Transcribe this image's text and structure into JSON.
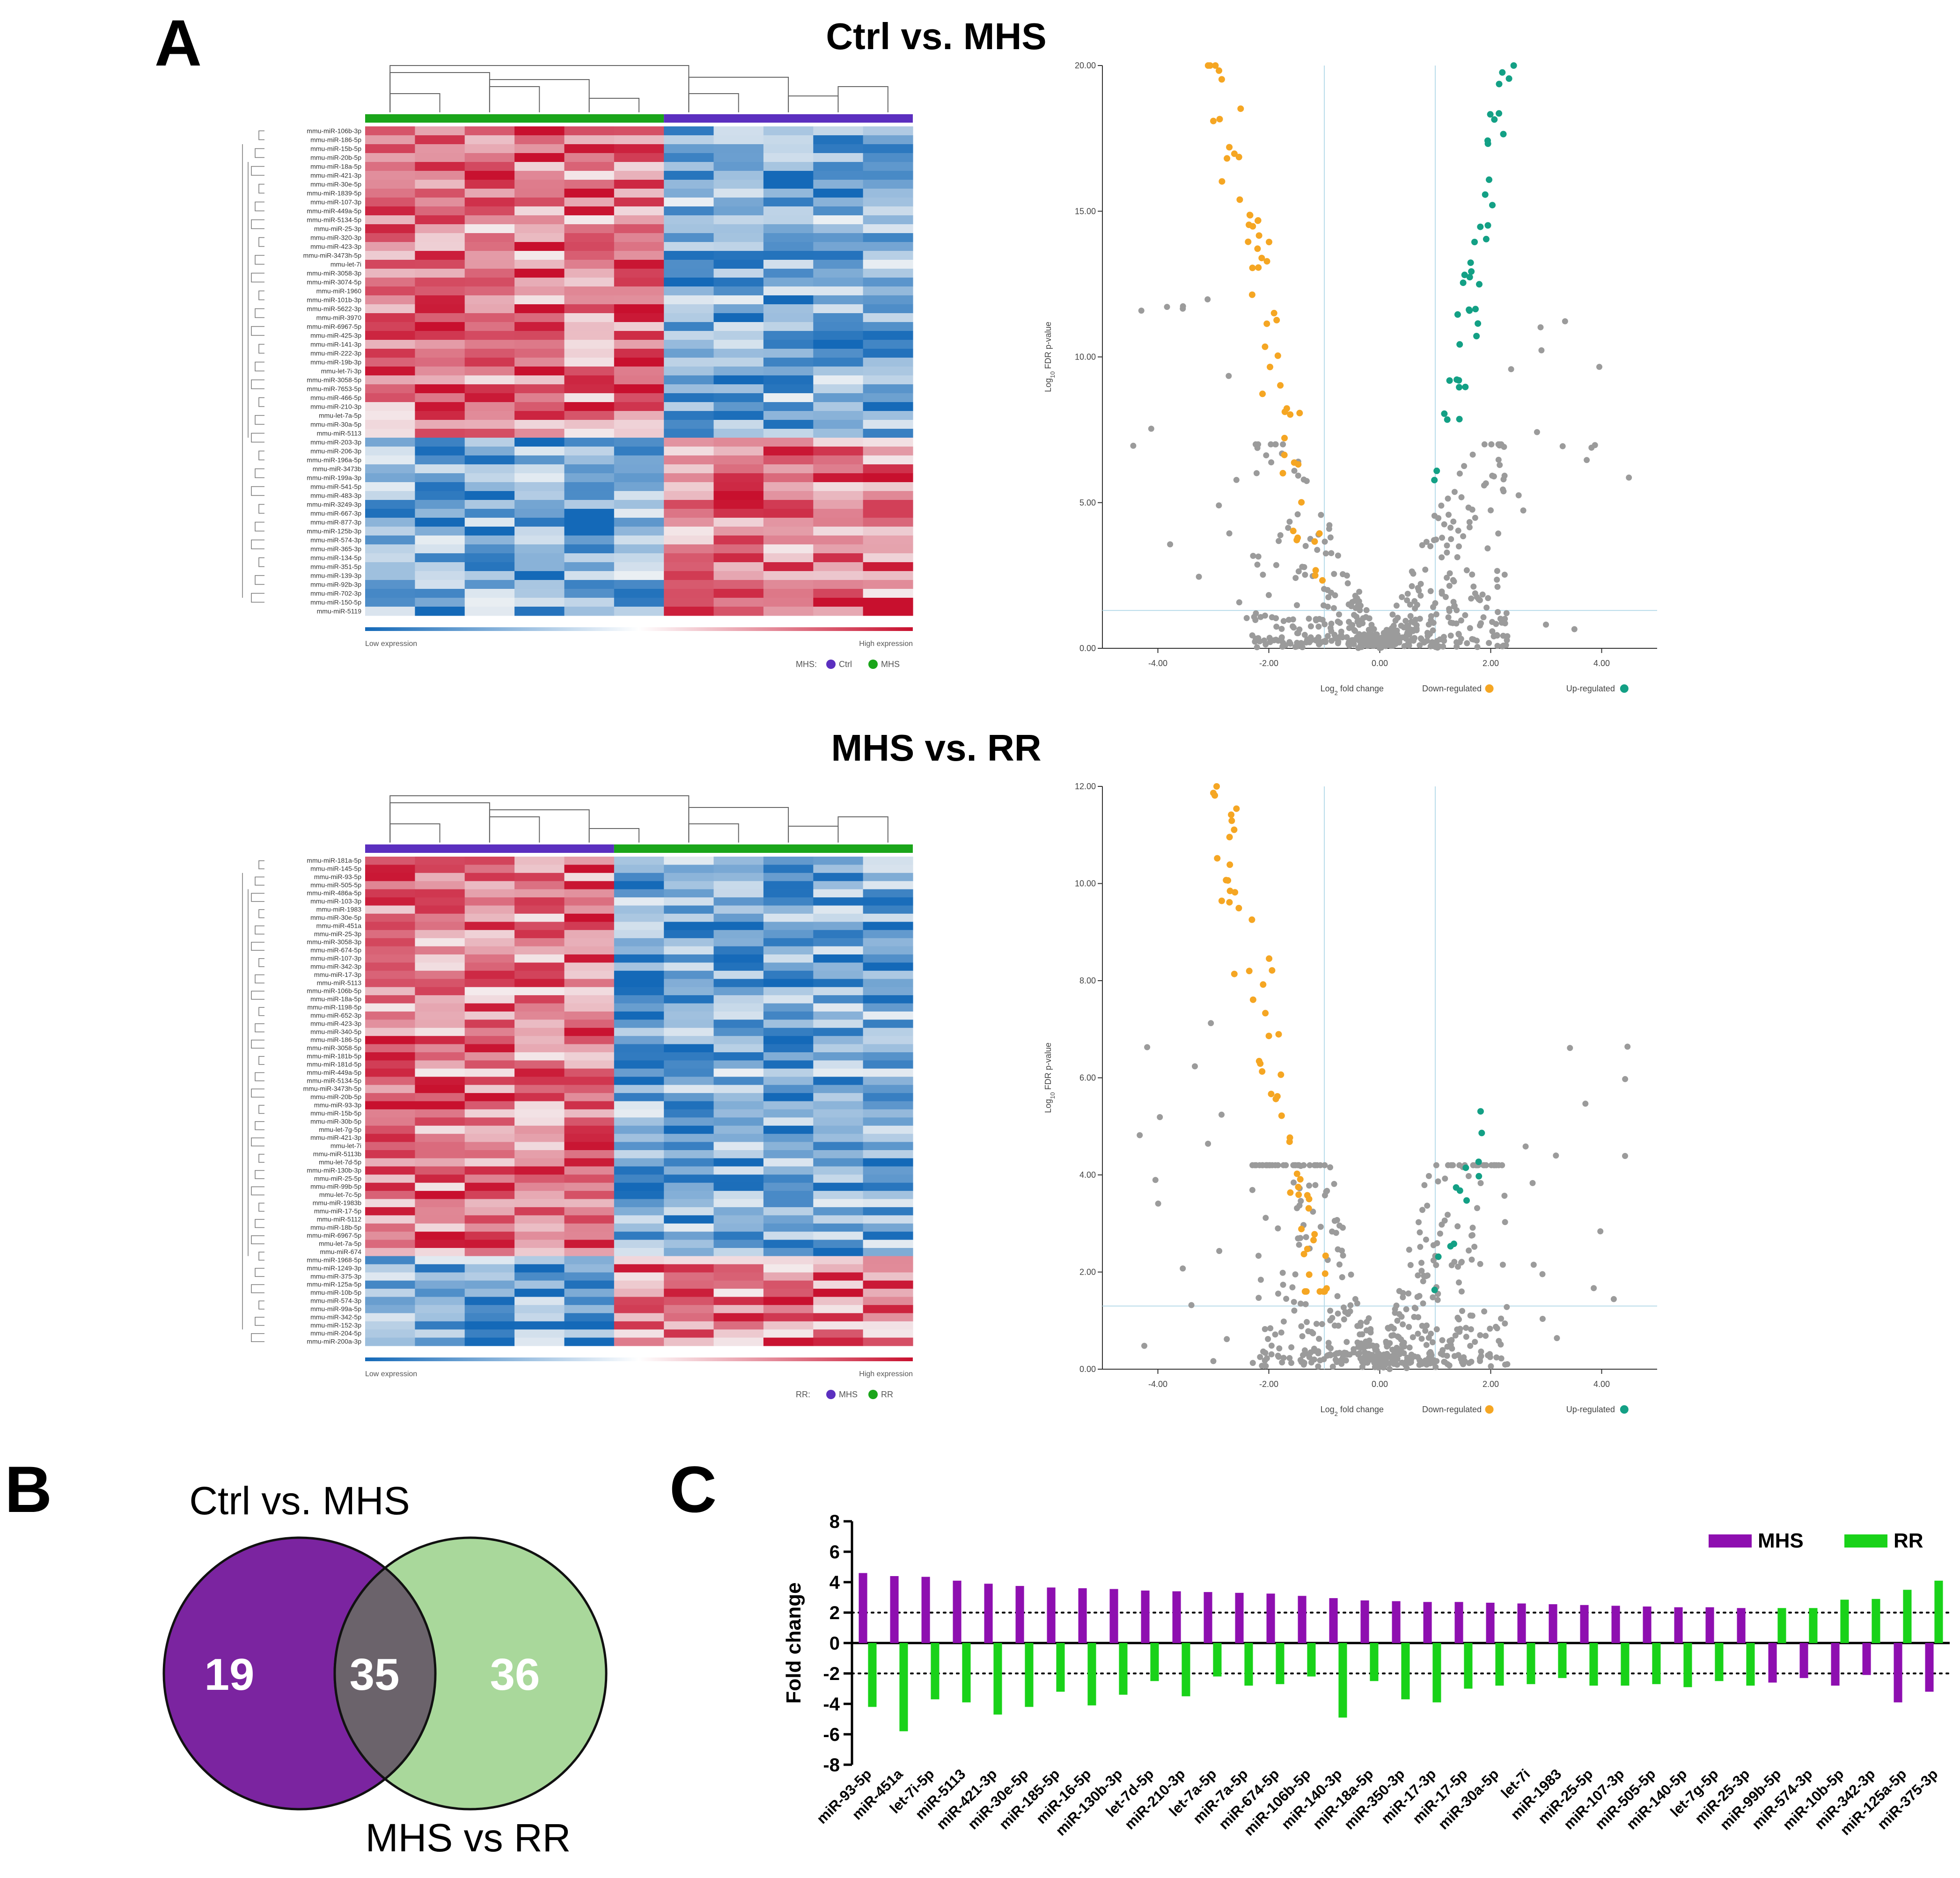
{
  "panel_labels": {
    "a": "A",
    "b": "B",
    "c": "C"
  },
  "colors": {
    "ctrl": "#5b2fbf",
    "mhs_group": "#1aa51a",
    "heat_high": "#c8102e",
    "heat_low": "#1469b8",
    "heat_mid": "#f6f6f6",
    "down": "#f5a623",
    "up": "#13a085",
    "ns": "#9b9b9b",
    "threshold": "#b9dcea",
    "venn_left": "#7b24a0",
    "venn_right": "#a9d89b",
    "venn_overlap": "#6b636b",
    "bar_mhs": "#8e0fb0",
    "bar_rr": "#19d219"
  },
  "comparisons": [
    {
      "title": "Ctrl vs. MHS",
      "heatmap": {
        "row_labels": [
          "mmu-miR-106b-3p",
          "mmu-miR-186-5p",
          "mmu-miR-15b-5p",
          "mmu-miR-20b-5p",
          "mmu-miR-18a-5p",
          "mmu-miR-421-3p",
          "mmu-miR-30e-5p",
          "mmu-miR-1839-5p",
          "mmu-miR-107-3p",
          "mmu-miR-449a-5p",
          "mmu-miR-5134-5p",
          "mmu-miR-25-3p",
          "mmu-miR-320-3p",
          "mmu-miR-423-3p",
          "mmu-miR-3473h-5p",
          "mmu-let-7i",
          "mmu-miR-3058-3p",
          "mmu-miR-3074-5p",
          "mmu-miR-1960",
          "mmu-miR-101b-3p",
          "mmu-miR-5622-3p",
          "mmu-miR-3970",
          "mmu-miR-6967-5p",
          "mmu-miR-425-3p",
          "mmu-miR-141-3p",
          "mmu-miR-222-3p",
          "mmu-miR-19b-3p",
          "mmu-let-7i-3p",
          "mmu-miR-3058-5p",
          "mmu-miR-7653-5p",
          "mmu-miR-466-5p",
          "mmu-miR-210-3p",
          "mmu-let-7a-5p",
          "mmu-miR-30a-5p",
          "mmu-miR-5113",
          "mmu-miR-203-3p",
          "mmu-miR-206-3p",
          "mmu-miR-196a-5p",
          "mmu-miR-3473b",
          "mmu-miR-199a-3p",
          "mmu-miR-541-5p",
          "mmu-miR-483-3p",
          "mmu-miR-3249-3p",
          "mmu-miR-667-3p",
          "mmu-miR-877-3p",
          "mmu-miR-125b-3p",
          "mmu-miR-574-3p",
          "mmu-miR-365-3p",
          "mmu-miR-134-5p",
          "mmu-miR-351-5p",
          "mmu-miR-139-3p",
          "mmu-miR-92b-3p",
          "mmu-miR-702-3p",
          "mmu-miR-150-5p",
          "mmu-miR-5119"
        ],
        "low_label": "Low expression",
        "high_label": "High expression",
        "legend_title": "MHS:",
        "legend_items": [
          "Ctrl",
          "MHS"
        ]
      },
      "volcano": {
        "x_label_main": "Log",
        "x_label_sub": "2",
        "x_label_rest": " fold change",
        "y_label_main": "Log",
        "y_label_sub": "10",
        "y_label_rest": " FDR p-value",
        "x_ticks": [
          "-4.00",
          "-2.00",
          "0.00",
          "2.00",
          "4.00"
        ],
        "y_ticks": [
          "0.00",
          "5.00",
          "10.00",
          "15.00",
          "20.00"
        ],
        "xlim": [
          -5,
          5
        ],
        "ylim": [
          0,
          20
        ],
        "fc_threshold": [
          -1,
          1
        ],
        "p_threshold": 1.3,
        "down_label": "Down-regulated",
        "up_label": "Up-regulated"
      }
    },
    {
      "title": "MHS vs. RR",
      "heatmap": {
        "row_labels": [
          "mmu-miR-181a-5p",
          "mmu-miR-145-5p",
          "mmu-miR-93-5p",
          "mmu-miR-505-5p",
          "mmu-miR-486a-5p",
          "mmu-miR-103-3p",
          "mmu-miR-1983",
          "mmu-miR-30e-5p",
          "mmu-miR-451a",
          "mmu-miR-25-3p",
          "mmu-miR-3058-3p",
          "mmu-miR-674-5p",
          "mmu-miR-107-3p",
          "mmu-miR-342-3p",
          "mmu-miR-17-3p",
          "mmu-miR-5113",
          "mmu-miR-106b-5p",
          "mmu-miR-18a-5p",
          "mmu-miR-1198-5p",
          "mmu-miR-652-3p",
          "mmu-miR-423-3p",
          "mmu-miR-340-5p",
          "mmu-miR-186-5p",
          "mmu-miR-3058-5p",
          "mmu-miR-181b-5p",
          "mmu-miR-181d-5p",
          "mmu-miR-449a-5p",
          "mmu-miR-5134-5p",
          "mmu-miR-3473h-5p",
          "mmu-miR-20b-5p",
          "mmu-miR-93-3p",
          "mmu-miR-15b-5p",
          "mmu-miR-30b-5p",
          "mmu-let-7g-5p",
          "mmu-miR-421-3p",
          "mmu-let-7i",
          "mmu-miR-5113b",
          "mmu-let-7d-5p",
          "mmu-miR-130b-3p",
          "mmu-miR-25-5p",
          "mmu-miR-99b-5p",
          "mmu-let-7c-5p",
          "mmu-miR-1983b",
          "mmu-miR-17-5p",
          "mmu-miR-5112",
          "mmu-miR-18b-5p",
          "mmu-miR-6967-5p",
          "mmu-let-7a-5p",
          "mmu-miR-674",
          "mmu-miR-1968-5p",
          "mmu-miR-1249-3p",
          "mmu-miR-375-3p",
          "mmu-miR-125a-5p",
          "mmu-miR-10b-5p",
          "mmu-miR-574-3p",
          "mmu-miR-99a-5p",
          "mmu-miR-342-5p",
          "mmu-miR-152-3p",
          "mmu-miR-204-5p",
          "mmu-miR-200a-3p"
        ],
        "low_label": "Low expression",
        "high_label": "High expression",
        "legend_title": "RR:",
        "legend_items": [
          "MHS",
          "RR"
        ]
      },
      "volcano": {
        "x_label_main": "Log",
        "x_label_sub": "2",
        "x_label_rest": " fold change",
        "y_label_main": "Log",
        "y_label_sub": "10",
        "y_label_rest": " FDR p-value",
        "x_ticks": [
          "-4.00",
          "-2.00",
          "0.00",
          "2.00",
          "4.00"
        ],
        "y_ticks": [
          "0.00",
          "2.00",
          "4.00",
          "6.00",
          "8.00",
          "10.00",
          "12.00"
        ],
        "xlim": [
          -5,
          5
        ],
        "ylim": [
          0,
          12
        ],
        "fc_threshold": [
          -1,
          1
        ],
        "p_threshold": 1.3,
        "down_label": "Down-regulated",
        "up_label": "Up-regulated"
      }
    }
  ],
  "venn": {
    "left_label": "Ctrl vs. MHS",
    "right_label": "MHS vs RR",
    "left_only": "19",
    "overlap": "35",
    "right_only": "36"
  },
  "chart_data": {
    "type": "bar",
    "title": "",
    "xlabel": "",
    "ylabel": "Fold change",
    "ylim": [
      -8,
      8
    ],
    "yticks": [
      "-8",
      "-6",
      "-4",
      "-2",
      "0",
      "2",
      "4",
      "6",
      "8"
    ],
    "reference_lines": [
      2,
      -2
    ],
    "categories": [
      "miR-93-5p",
      "miR-451a",
      "let-7i-5p",
      "miR-5113",
      "miR-421-3p",
      "miR-30e-5p",
      "miR-185-5p",
      "miR-16-5p",
      "miR-130b-3p",
      "let-7d-5p",
      "miR-210-3p",
      "let-7a-5p",
      "miR-7a-5p",
      "miR-674-5p",
      "miR-106b-5p",
      "miR-140-3p",
      "miR-18a-5p",
      "miR-350-3p",
      "miR-17-3p",
      "miR-17-5p",
      "miR-30a-5p",
      "let-7i",
      "miR-1983",
      "miR-25-5p",
      "miR-107-3p",
      "miR-505-5p",
      "miR-140-5p",
      "let-7g-5p",
      "miR-25-3p",
      "miR-99b-5p",
      "miR-574-3p",
      "miR-10b-5p",
      "miR-342-3p",
      "miR-125a-5p",
      "miR-375-3p"
    ],
    "series": [
      {
        "name": "MHS",
        "values": [
          4.6,
          4.4,
          4.35,
          4.1,
          3.9,
          3.75,
          3.65,
          3.6,
          3.55,
          3.45,
          3.4,
          3.35,
          3.3,
          3.25,
          3.1,
          2.95,
          2.8,
          2.75,
          2.7,
          2.7,
          2.65,
          2.6,
          2.55,
          2.5,
          2.45,
          2.4,
          2.35,
          2.35,
          2.3,
          -2.6,
          -2.3,
          -2.8,
          -2.1,
          -3.9,
          -3.2
        ]
      },
      {
        "name": "RR",
        "values": [
          -4.2,
          -5.8,
          -3.7,
          -3.9,
          -4.7,
          -4.2,
          -3.2,
          -4.1,
          -3.4,
          -2.5,
          -3.5,
          -2.2,
          -2.8,
          -2.7,
          -2.2,
          -4.9,
          -2.5,
          -3.7,
          -3.9,
          -3.0,
          -2.8,
          -2.7,
          -2.3,
          -2.8,
          -2.8,
          -2.7,
          -2.9,
          -2.5,
          -2.8,
          2.3,
          2.3,
          2.85,
          2.9,
          3.5,
          4.1
        ]
      }
    ]
  }
}
